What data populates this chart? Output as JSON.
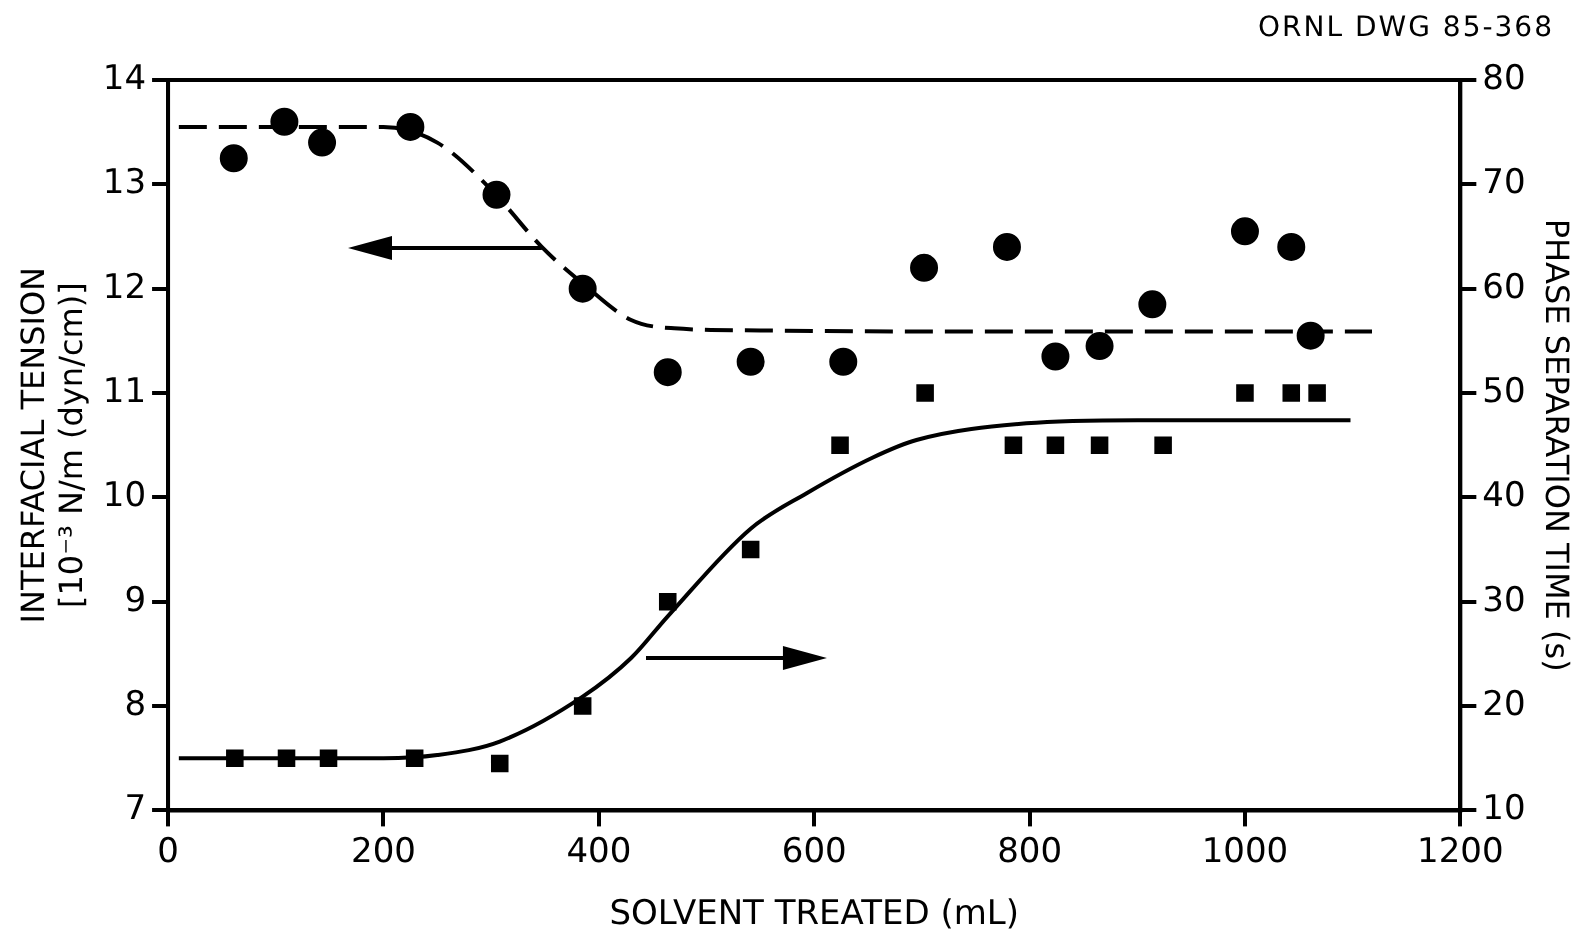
{
  "chart_data": {
    "type": "scatter",
    "xlabel": "SOLVENT TREATED (mL)",
    "ylabel": "INTERFACIAL TENSION\n[10⁻³ N/m (dyn/cm)]",
    "y2label": "PHASE SEPARATION TIME (s)",
    "annotations": [
      "ORNL DWG 85-368"
    ],
    "xlim": [
      0,
      1200
    ],
    "xticks": [
      0,
      200,
      400,
      600,
      800,
      1000,
      1200
    ],
    "ylim": [
      7,
      14
    ],
    "yticks": [
      7,
      8,
      9,
      10,
      11,
      12,
      13,
      14
    ],
    "y2lim": [
      10,
      80
    ],
    "y2ticks": [
      10,
      20,
      30,
      40,
      50,
      60,
      70,
      80
    ],
    "grid": false,
    "legend": false,
    "series": [
      {
        "marker": "circle",
        "color": "#000000",
        "axis": "y",
        "x": [
          61,
          108,
          143,
          225,
          305,
          385,
          464,
          541,
          627,
          702,
          779,
          824,
          865,
          914,
          1000,
          1043,
          1061
        ],
        "values": [
          13.25,
          13.6,
          13.4,
          13.55,
          12.9,
          12.0,
          11.2,
          11.3,
          11.3,
          12.2,
          12.4,
          11.35,
          11.45,
          11.85,
          12.55,
          12.4,
          11.55
        ]
      },
      {
        "marker": "square",
        "color": "#000000",
        "axis": "y2",
        "x": [
          62,
          110,
          149,
          229,
          308,
          385,
          464,
          541,
          624,
          703,
          785,
          824,
          865,
          924,
          1000,
          1043,
          1067
        ],
        "values": [
          15,
          15,
          15,
          15,
          14.5,
          20,
          30,
          35,
          45,
          50,
          45,
          45,
          45,
          45,
          50,
          50,
          50
        ]
      },
      {
        "type": "line",
        "marker": "none",
        "line_style": "dashed",
        "color": "#000000",
        "axis": "y",
        "x": [
          10,
          100,
          200,
          250,
          300,
          347,
          385,
          430,
          470,
          550,
          700,
          900,
          1118
        ],
        "values": [
          13.55,
          13.55,
          13.55,
          13.4,
          12.95,
          12.4,
          12.05,
          11.7,
          11.62,
          11.6,
          11.59,
          11.59,
          11.59
        ]
      },
      {
        "type": "line",
        "marker": "none",
        "line_style": "solid",
        "color": "#000000",
        "axis": "y2",
        "x": [
          10,
          100,
          200,
          250,
          308,
          385,
          430,
          464,
          541,
          593,
          654,
          695,
          797,
          900,
          1098
        ],
        "values": [
          15,
          15,
          15,
          15.3,
          16.6,
          20.9,
          24.6,
          28.6,
          37,
          40.4,
          43.8,
          45.5,
          47.1,
          47.4,
          47.4
        ]
      }
    ]
  }
}
